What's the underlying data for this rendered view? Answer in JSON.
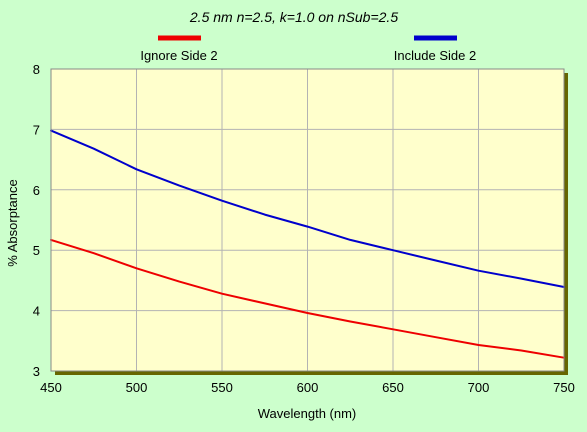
{
  "chart_data": {
    "type": "line",
    "title": "2.5 nm n=2.5, k=1.0 on nSub=2.5",
    "xlabel": "Wavelength (nm)",
    "ylabel": "% Absorptance",
    "xlim": [
      450,
      750
    ],
    "ylim": [
      3,
      8
    ],
    "xticks": [
      450,
      500,
      550,
      600,
      650,
      700,
      750
    ],
    "yticks": [
      3,
      4,
      5,
      6,
      7,
      8
    ],
    "grid": true,
    "legend_position": "top",
    "background_color": "#ccffcc",
    "plot_background_color": "#ffffcc",
    "series": [
      {
        "name": "Ignore Side 2",
        "color": "#ee0000",
        "x": [
          450,
          475,
          500,
          525,
          550,
          575,
          600,
          625,
          650,
          675,
          700,
          725,
          750
        ],
        "y": [
          5.17,
          4.95,
          4.7,
          4.48,
          4.28,
          4.12,
          3.96,
          3.82,
          3.69,
          3.56,
          3.43,
          3.34,
          3.22
        ]
      },
      {
        "name": "Include Side 2",
        "color": "#0000cc",
        "x": [
          450,
          475,
          500,
          525,
          550,
          575,
          600,
          625,
          650,
          675,
          700,
          725,
          750
        ],
        "y": [
          6.98,
          6.68,
          6.34,
          6.07,
          5.82,
          5.59,
          5.39,
          5.17,
          5.0,
          4.83,
          4.66,
          4.53,
          4.39
        ]
      }
    ]
  }
}
